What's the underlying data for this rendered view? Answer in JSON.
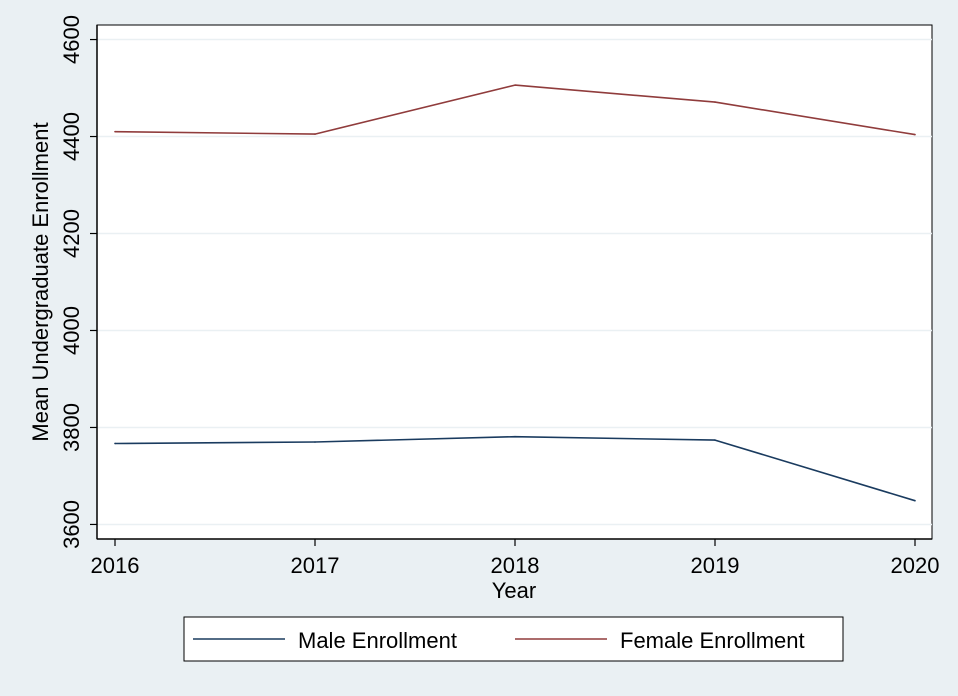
{
  "chart_data": {
    "type": "line",
    "xlabel": "Year",
    "ylabel": "Mean Undergraduate Enrollment",
    "x": [
      2016,
      2017,
      2018,
      2019,
      2020
    ],
    "x_ticks": [
      "2016",
      "2017",
      "2018",
      "2019",
      "2020"
    ],
    "y_ticks": [
      "3600",
      "3800",
      "4000",
      "4200",
      "4400",
      "4600"
    ],
    "ylim": [
      3570,
      4630
    ],
    "xlim": [
      2016,
      2020
    ],
    "grid": true,
    "legend_position": "bottom",
    "series": [
      {
        "name": "Male Enrollment",
        "color": "#1a3b5f",
        "values": [
          3767,
          3770,
          3781,
          3774,
          3649
        ]
      },
      {
        "name": "Female Enrollment",
        "color": "#903c3c",
        "values": [
          4410,
          4405,
          4506,
          4471,
          4404
        ]
      }
    ]
  }
}
